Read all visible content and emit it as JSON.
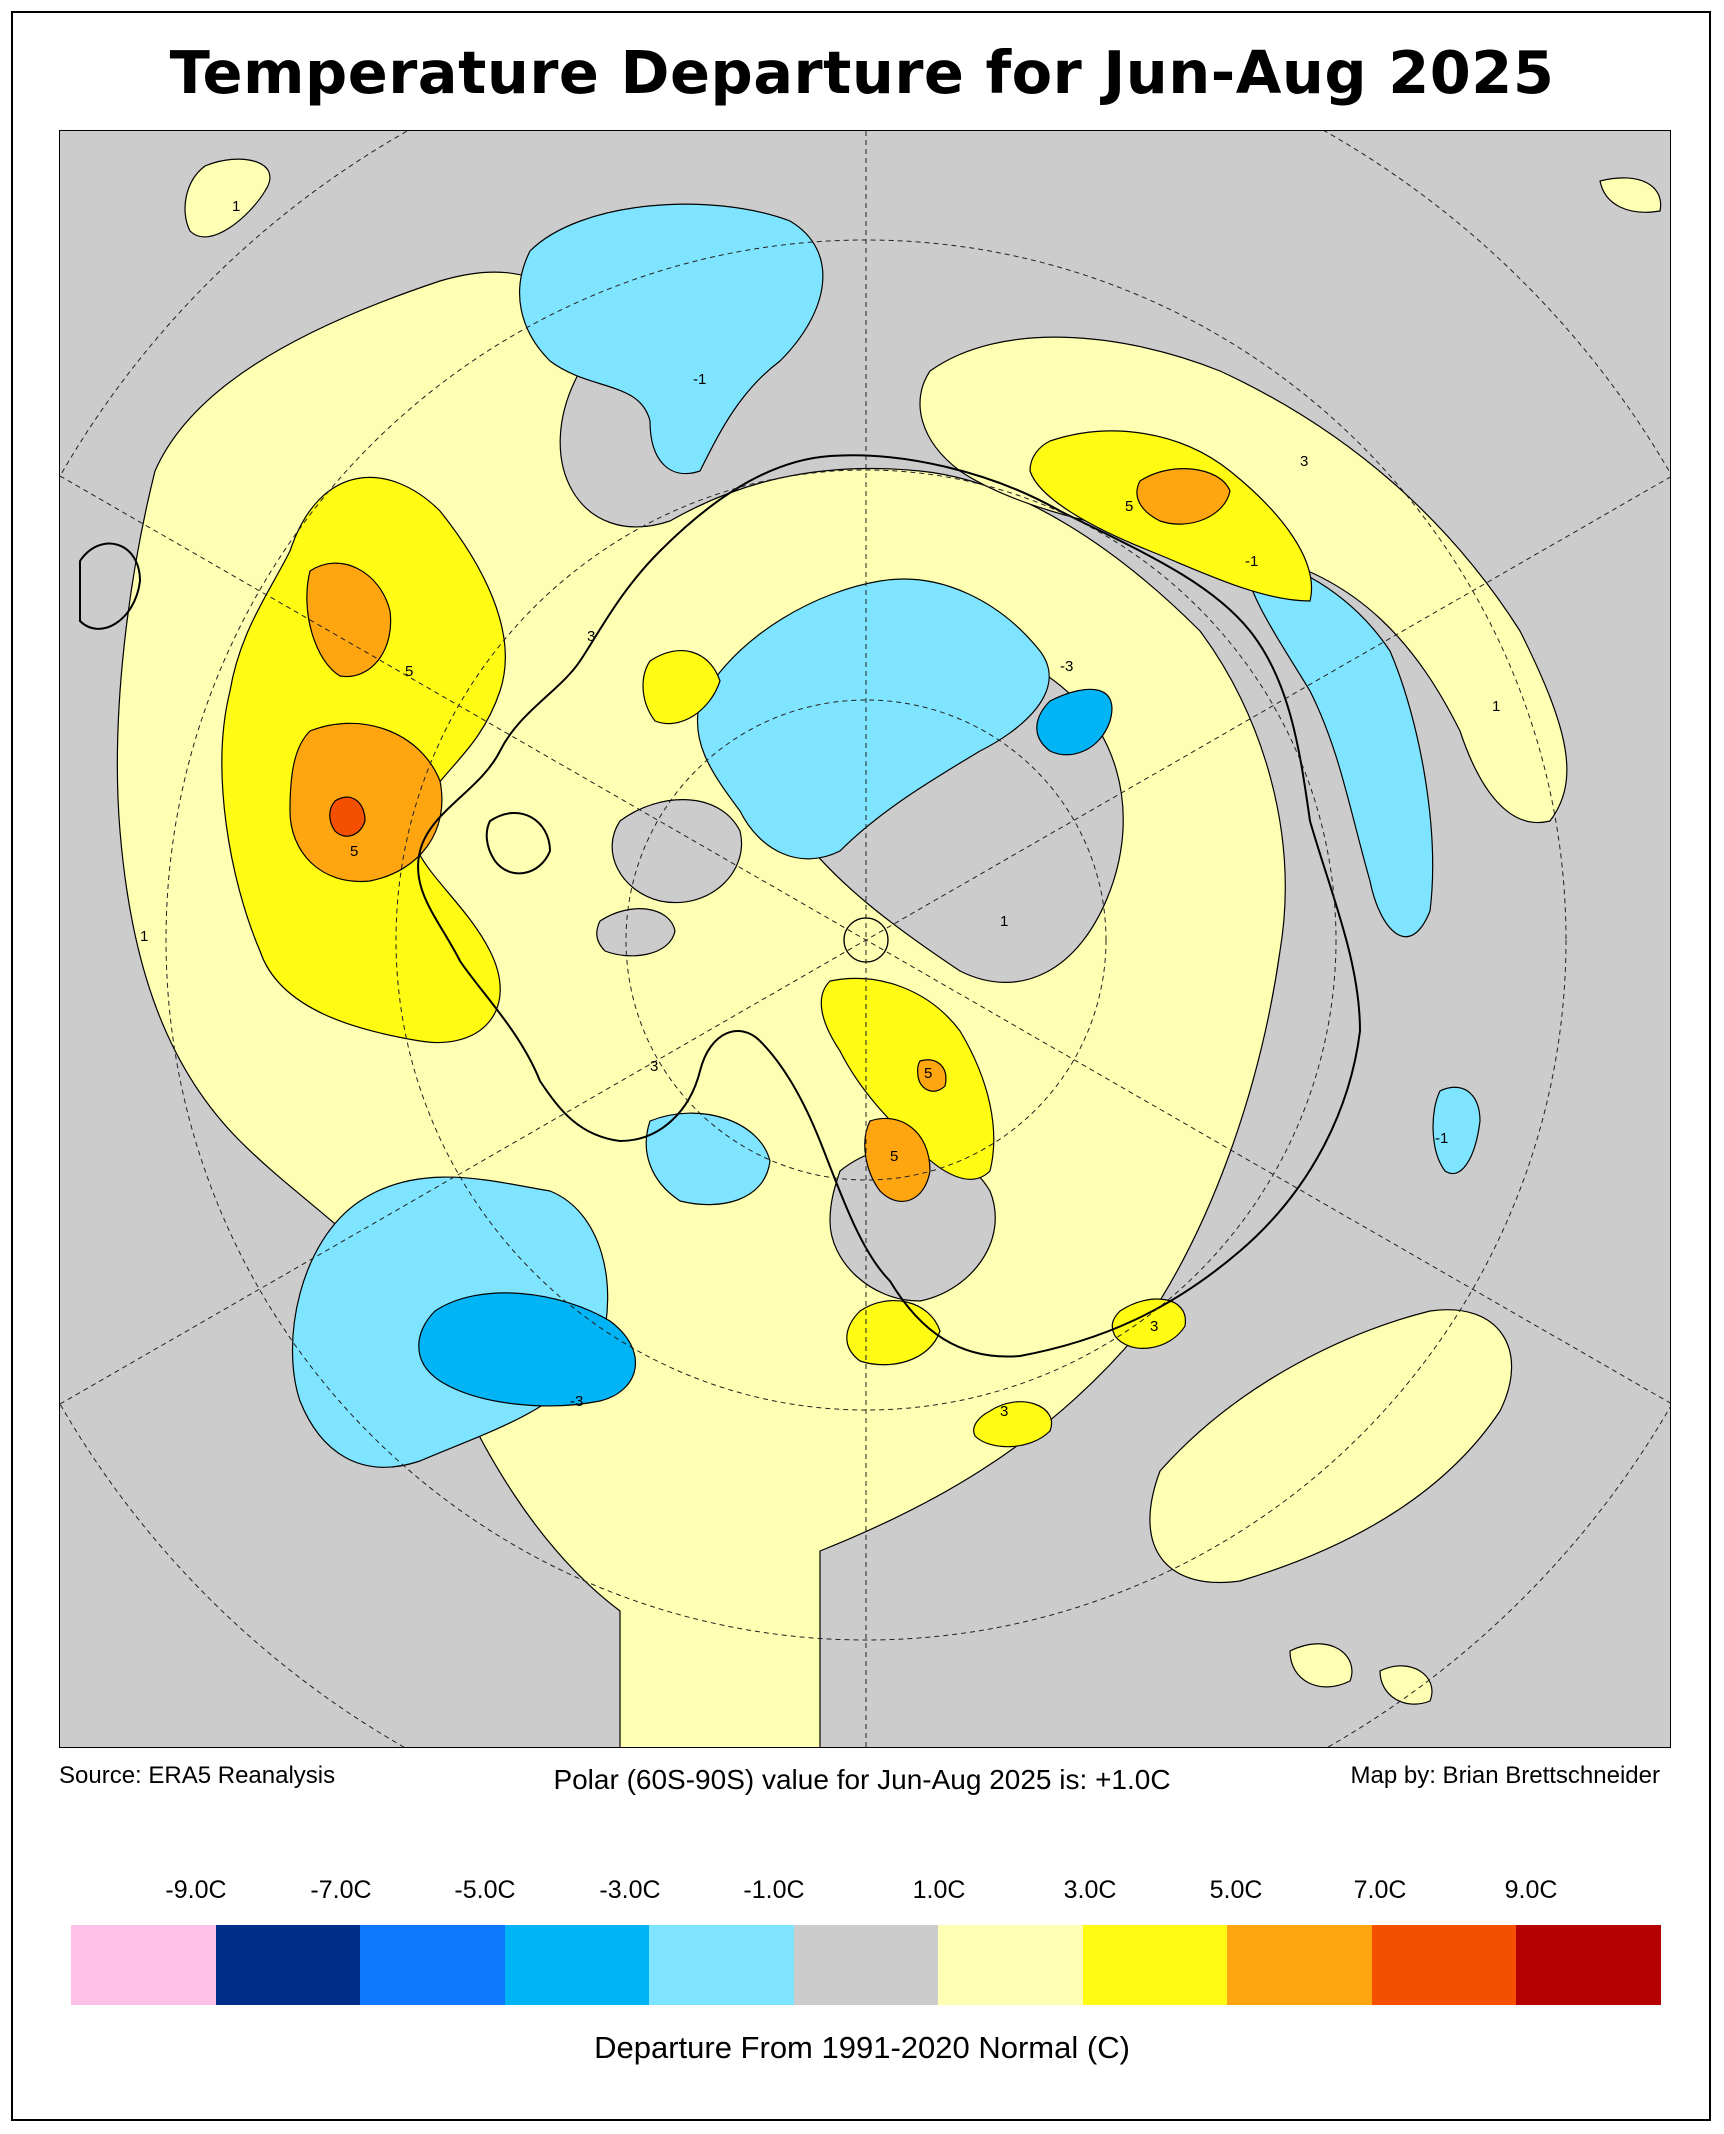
{
  "title": "Temperature Departure for Jun-Aug 2025",
  "source": "Source: ERA5 Reanalysis",
  "polar_value": "Polar (60S-90S) value for Jun-Aug 2025 is: +1.0C",
  "credit": "Map by: Brian Brettschneider",
  "legend": {
    "title": "Departure From 1991-2020 Normal (C)",
    "tick_labels": [
      "-9.0C",
      "-7.0C",
      "-5.0C",
      "-3.0C",
      "-1.0C",
      "1.0C",
      "3.0C",
      "5.0C",
      "7.0C",
      "9.0C"
    ],
    "bins": [
      {
        "range": "< -9",
        "color": "#ffc0e8"
      },
      {
        "range": "-9 to -7",
        "color": "#002d87"
      },
      {
        "range": "-7 to -5",
        "color": "#0f78ff"
      },
      {
        "range": "-5 to -3",
        "color": "#00b4f5"
      },
      {
        "range": "-3 to -1",
        "color": "#7ee4ff"
      },
      {
        "range": "-1 to 1",
        "color": "#cccccc"
      },
      {
        "range": "1 to 3",
        "color": "#ffffb4"
      },
      {
        "range": "3 to 5",
        "color": "#fffb13"
      },
      {
        "range": "5 to 7",
        "color": "#ffa510"
      },
      {
        "range": "7 to 9",
        "color": "#f55000"
      },
      {
        "range": "> 9",
        "color": "#b40000"
      }
    ]
  },
  "map": {
    "projection": "south-polar stereographic",
    "contour_labels": [
      "1",
      "-1",
      "3",
      "-3",
      "5"
    ]
  }
}
